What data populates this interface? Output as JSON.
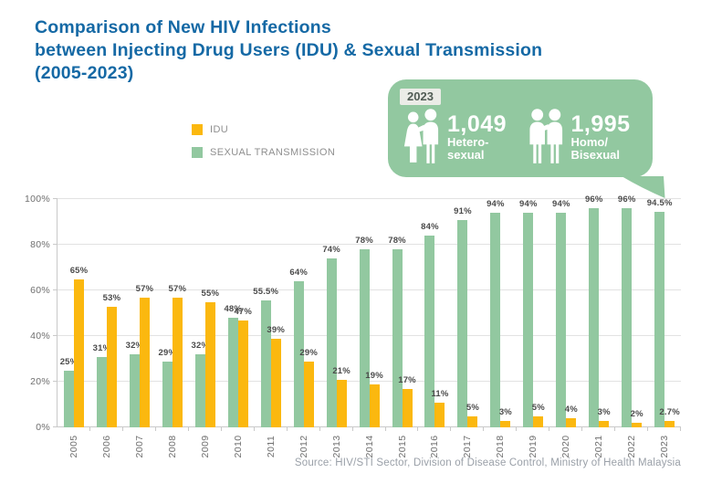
{
  "title": {
    "line1": "Comparison of New HIV Infections",
    "line2": "between Injecting Drug Users (IDU) & Sexual Transmission",
    "line3": "(2005-2023)"
  },
  "legend": [
    {
      "label": "IDU",
      "color": "#FBB80F"
    },
    {
      "label": "SEXUAL TRANSMISSION",
      "color": "#92C8A0"
    }
  ],
  "callout": {
    "year_badge": "2023",
    "bubble_color": "#92C8A0",
    "stats": [
      {
        "icon": "hetero-couple-icon",
        "value": "1,049",
        "label_line1": "Hetero-",
        "label_line2": "sexual"
      },
      {
        "icon": "male-couple-icon",
        "value": "1,995",
        "label_line1": "Homo/",
        "label_line2": "Bisexual"
      }
    ]
  },
  "source": "Source: HIV/STI Sector, Division of Disease Control, Ministry of Health Malaysia",
  "colors": {
    "title_blue": "#1569A5",
    "idu_yellow": "#FBB80F",
    "sexual_green": "#92C8A0",
    "gridline": "#E2E2E2",
    "axis_text": "#6F6F6F",
    "data_label": "#4A4A4A"
  },
  "chart_data": {
    "type": "bar",
    "title": "Comparison of New HIV Infections between Injecting Drug Users (IDU) & Sexual Transmission (2005-2023)",
    "categories": [
      "2005",
      "2006",
      "2007",
      "2008",
      "2009",
      "2010",
      "2011",
      "2012",
      "2013",
      "2014",
      "2015",
      "2016",
      "2017",
      "2018",
      "2019",
      "2020",
      "2021",
      "2022",
      "2023"
    ],
    "series": [
      {
        "name": "SEXUAL TRANSMISSION",
        "color": "#92C8A0",
        "values": [
          25,
          31,
          32,
          29,
          32,
          48,
          55.5,
          64,
          74,
          78,
          78,
          84,
          91,
          94,
          94,
          94,
          96,
          96,
          94.5
        ]
      },
      {
        "name": "IDU",
        "color": "#FBB80F",
        "values": [
          65,
          53,
          57,
          57,
          55,
          47,
          39,
          29,
          21,
          19,
          17,
          11,
          5,
          3,
          5,
          4,
          3,
          2,
          2.7
        ]
      }
    ],
    "bar_order_note": "green SEXUAL TRANSMISSION bar drawn left, yellow IDU bar drawn right in each year group; value labels shown above every bar as percent",
    "xlabel": "",
    "ylabel": "",
    "ylim": [
      0,
      100
    ],
    "yticks": [
      "0%",
      "20%",
      "40%",
      "60%",
      "80%",
      "100%"
    ],
    "grid": true,
    "legend_position": "top-left above plot"
  }
}
